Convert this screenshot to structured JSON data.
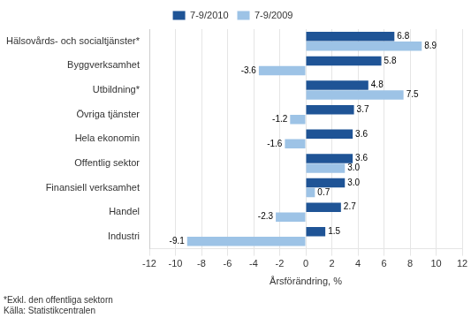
{
  "chart_data": {
    "type": "bar",
    "orientation": "horizontal",
    "categories": [
      "Industri",
      "Handel",
      "Finansiell verksamhet",
      "Offentlig sektor",
      "Hela ekonomin",
      "Övriga tjänster",
      "Utbildning*",
      "Byggverksamhet",
      "Hälsovårds- och socialtjänster*"
    ],
    "series": [
      {
        "name": "7-9/2010",
        "color": "#1f5496",
        "values": [
          1.5,
          2.7,
          3.0,
          3.6,
          3.6,
          3.7,
          4.8,
          5.8,
          6.8
        ],
        "value_labels": [
          "1.5",
          "2.7",
          "3.0",
          "3.6",
          "3.6",
          "3.7",
          "4.8",
          "5.8",
          "6.8"
        ]
      },
      {
        "name": "7-9/2009",
        "color": "#9dc3e6",
        "values": [
          -9.1,
          -2.3,
          0.7,
          3.0,
          -1.6,
          -1.2,
          7.5,
          -3.6,
          8.9
        ],
        "value_labels": [
          "-9.1",
          "-2.3",
          "0.7",
          "3.0",
          "-1.6",
          "-1.2",
          "7.5",
          "-3.6",
          "8.9"
        ]
      }
    ],
    "xlabel": "Årsförändring, %",
    "xlim": [
      -12,
      12
    ],
    "xticks": [
      -12,
      -10,
      -8,
      -6,
      -4,
      -2,
      0,
      2,
      4,
      6,
      8,
      10,
      12
    ],
    "grid": true,
    "legend": "top",
    "data_labels": true,
    "annotations": [
      "*Exkl. den offentliga sektorn",
      "Källa: Statistikcentralen"
    ]
  }
}
